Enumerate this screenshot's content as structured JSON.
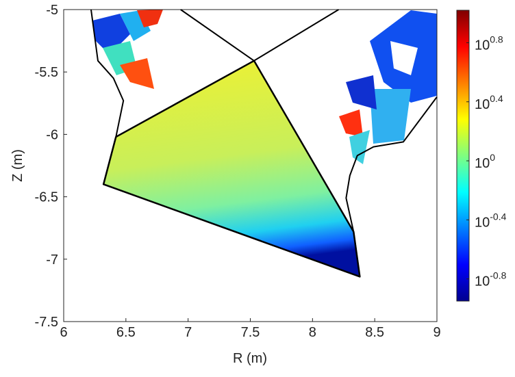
{
  "chart_data": {
    "type": "line",
    "xlabel": "R (m)",
    "ylabel": "Z (m)",
    "xlim": [
      6,
      9
    ],
    "ylim": [
      -7.5,
      -5
    ],
    "xticks": [
      6,
      6.5,
      7,
      7.5,
      8,
      8.5,
      9
    ],
    "yticks": [
      -7.5,
      -7,
      -6.5,
      -6,
      -5.5,
      -5
    ],
    "series": [
      {
        "color": "#000000",
        "fill": false,
        "x": [
          6.22,
          6.275,
          6.4,
          6.48,
          6.42,
          6.32,
          8.38,
          8.33,
          8.27,
          8.3,
          8.36,
          8.49,
          8.73,
          9.0
        ],
        "values": [
          -5.0,
          -5.41,
          -5.55,
          -5.73,
          -6.02,
          -6.4,
          -7.14,
          -6.78,
          -6.51,
          -6.33,
          -6.17,
          -6.1,
          -6.06,
          -5.7
        ]
      },
      {
        "color": "#000000",
        "fill": true,
        "x": [
          6.42,
          7.53,
          8.33,
          8.38,
          6.32
        ],
        "values": [
          -6.02,
          -5.41,
          -6.78,
          -7.14,
          -6.4
        ]
      },
      {
        "color": "#000000",
        "fill": false,
        "x": [
          6.94,
          7.53,
          8.21
        ],
        "values": [
          -5.0,
          -5.41,
          -5.0
        ]
      }
    ],
    "colorbar": {
      "log": true,
      "clim": [
        -0.95,
        1.02
      ],
      "cticks": [
        {
          "value": -0.8,
          "label": "10",
          "sup": "-0.8"
        },
        {
          "value": -0.4,
          "label": "10",
          "sup": "-0.4"
        },
        {
          "value": 0,
          "label": "10",
          "sup": "0"
        },
        {
          "value": 0.4,
          "label": "10",
          "sup": "0.4"
        },
        {
          "value": 0.8,
          "label": "10",
          "sup": "0.8"
        }
      ]
    }
  }
}
